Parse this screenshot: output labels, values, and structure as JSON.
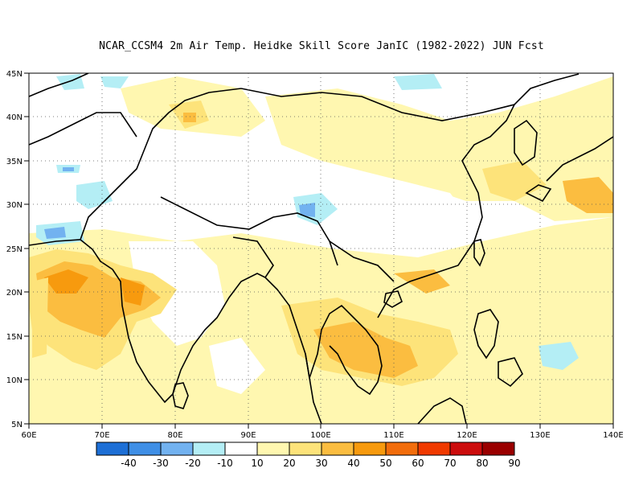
{
  "title": "NCAR_CCSM4  2m Air Temp. Heidke Skill Score JanIC (1982-2022) JUN Fcst",
  "map": {
    "lon_range": [
      60,
      140
    ],
    "lat_range": [
      5,
      45
    ],
    "lon_ticks": [
      "60E",
      "70E",
      "80E",
      "90E",
      "100E",
      "110E",
      "120E",
      "130E",
      "140E"
    ],
    "lat_ticks": [
      "5N",
      "10N",
      "15N",
      "20N",
      "25N",
      "30N",
      "35N",
      "40N",
      "45N"
    ],
    "grid": "dotted every 10 degrees"
  },
  "colorbar": {
    "labels": [
      "-40",
      "-30",
      "-20",
      "-10",
      "10",
      "20",
      "30",
      "40",
      "50",
      "60",
      "70",
      "80",
      "90"
    ],
    "colors": [
      "#1d6fd6",
      "#3f8fe6",
      "#72b2f0",
      "#b4eef5",
      "#ffffff",
      "#fff7b0",
      "#fde37a",
      "#fbbd40",
      "#f79a0e",
      "#f26d0c",
      "#f03a00",
      "#cc0d0d",
      "#9a0000"
    ]
  },
  "icons": {
    "map": "coastline-map"
  }
}
